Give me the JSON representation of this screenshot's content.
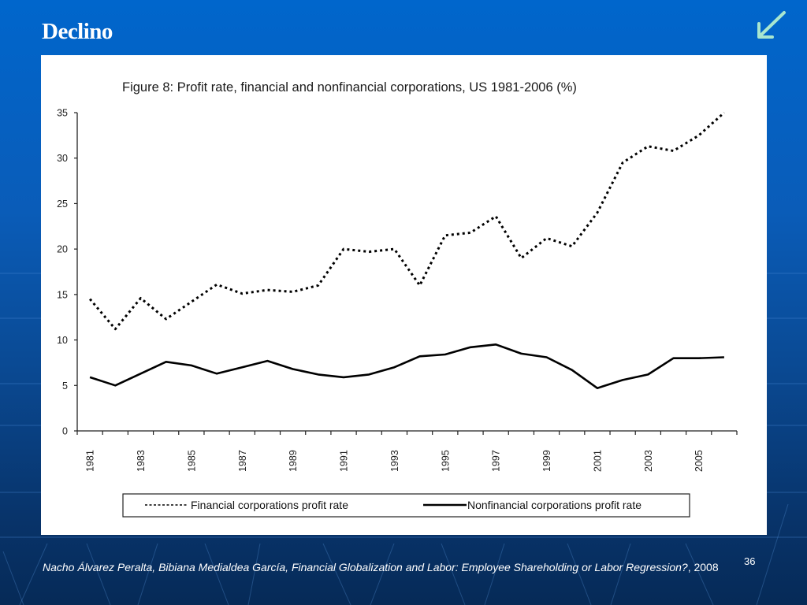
{
  "slide": {
    "title": "Declino",
    "nav_icon": "arrow-down-left-icon",
    "slide_number": "36",
    "footer": {
      "authors_work": "Nacho Álvarez Peralta,  Bibiana Medialdea García, Financial Globalization and Labor: Employee Shareholding or Labor Regression?",
      "year_suffix": ", 2008"
    },
    "colors": {
      "background_top": "#0066cc",
      "background_bottom": "#062a57",
      "arrow": "#a8e6cf",
      "chart_bg": "#ffffff",
      "line": "#000000"
    }
  },
  "chart_data": {
    "type": "line",
    "title": "Figure 8: Profit rate, financial and nonfinancial corporations, US 1981-2006 (%)",
    "xlabel": "",
    "ylabel": "",
    "x": [
      1981,
      1982,
      1983,
      1984,
      1985,
      1986,
      1987,
      1988,
      1989,
      1990,
      1991,
      1992,
      1993,
      1994,
      1995,
      1996,
      1997,
      1998,
      1999,
      2000,
      2001,
      2002,
      2003,
      2004,
      2005,
      2006
    ],
    "x_tick_labels": [
      "1981",
      "1983",
      "1985",
      "1987",
      "1989",
      "1991",
      "1993",
      "1995",
      "1997",
      "1999",
      "2001",
      "2003",
      "2005"
    ],
    "y_ticks": [
      0,
      5,
      10,
      15,
      20,
      25,
      30,
      35
    ],
    "ylim": [
      0,
      35
    ],
    "grid": false,
    "legend_position": "bottom",
    "series": [
      {
        "name": "Financial corporations profit rate",
        "style": "dotted",
        "values": [
          14.5,
          11.2,
          14.6,
          12.3,
          14.2,
          16.1,
          15.1,
          15.5,
          15.3,
          16.0,
          20.0,
          19.7,
          20.0,
          16.0,
          21.5,
          21.8,
          23.6,
          19.0,
          21.2,
          20.3,
          24.0,
          29.5,
          31.3,
          30.8,
          32.5,
          35.0
        ]
      },
      {
        "name": "Nonfinancial corporations profit rate",
        "style": "solid",
        "values": [
          5.9,
          5.0,
          6.3,
          7.6,
          7.2,
          6.3,
          7.0,
          7.7,
          6.8,
          6.2,
          5.9,
          6.2,
          7.0,
          8.2,
          8.4,
          9.2,
          9.5,
          8.5,
          8.1,
          6.7,
          4.7,
          5.6,
          6.2,
          8.0,
          8.0,
          8.1
        ]
      }
    ]
  }
}
